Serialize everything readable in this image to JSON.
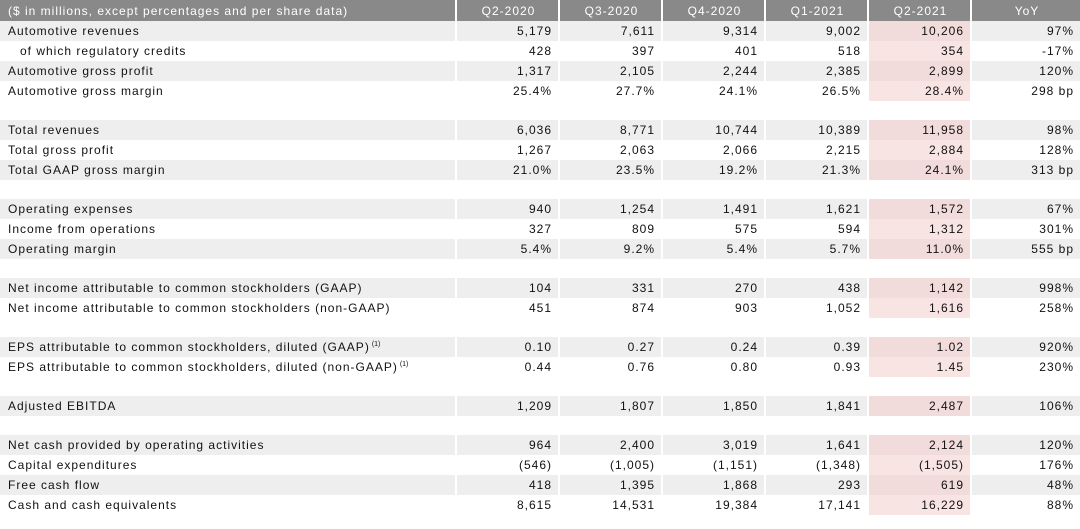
{
  "header": {
    "label": "($ in millions, except percentages and per share data)",
    "columns": [
      "Q2-2020",
      "Q3-2020",
      "Q4-2020",
      "Q1-2021",
      "Q2-2021",
      "YoY"
    ]
  },
  "sections": [
    {
      "rows": [
        {
          "label": "Automotive revenues",
          "indent": false,
          "values": [
            "5,179",
            "7,611",
            "9,314",
            "9,002",
            "10,206",
            "97%"
          ]
        },
        {
          "label": "of which regulatory credits",
          "indent": true,
          "values": [
            "428",
            "397",
            "401",
            "518",
            "354",
            "-17%"
          ]
        },
        {
          "label": "Automotive gross profit",
          "indent": false,
          "values": [
            "1,317",
            "2,105",
            "2,244",
            "2,385",
            "2,899",
            "120%"
          ]
        },
        {
          "label": "Automotive gross margin",
          "indent": false,
          "values": [
            "25.4%",
            "27.7%",
            "24.1%",
            "26.5%",
            "28.4%",
            "298 bp"
          ]
        }
      ]
    },
    {
      "rows": [
        {
          "label": "Total revenues",
          "indent": false,
          "values": [
            "6,036",
            "8,771",
            "10,744",
            "10,389",
            "11,958",
            "98%"
          ]
        },
        {
          "label": "Total gross profit",
          "indent": false,
          "values": [
            "1,267",
            "2,063",
            "2,066",
            "2,215",
            "2,884",
            "128%"
          ]
        },
        {
          "label": "Total GAAP gross margin",
          "indent": false,
          "values": [
            "21.0%",
            "23.5%",
            "19.2%",
            "21.3%",
            "24.1%",
            "313 bp"
          ]
        }
      ]
    },
    {
      "rows": [
        {
          "label": "Operating expenses",
          "indent": false,
          "values": [
            "940",
            "1,254",
            "1,491",
            "1,621",
            "1,572",
            "67%"
          ]
        },
        {
          "label": "Income from operations",
          "indent": false,
          "values": [
            "327",
            "809",
            "575",
            "594",
            "1,312",
            "301%"
          ]
        },
        {
          "label": "Operating margin",
          "indent": false,
          "values": [
            "5.4%",
            "9.2%",
            "5.4%",
            "5.7%",
            "11.0%",
            "555 bp"
          ]
        }
      ]
    },
    {
      "rows": [
        {
          "label": "Net income attributable to common stockholders (GAAP)",
          "indent": false,
          "values": [
            "104",
            "331",
            "270",
            "438",
            "1,142",
            "998%"
          ]
        },
        {
          "label": "Net income attributable to common stockholders (non-GAAP)",
          "indent": false,
          "values": [
            "451",
            "874",
            "903",
            "1,052",
            "1,616",
            "258%"
          ]
        }
      ]
    },
    {
      "rows": [
        {
          "label": "EPS attributable to common stockholders, diluted (GAAP)",
          "note": "(1)",
          "indent": false,
          "values": [
            "0.10",
            "0.27",
            "0.24",
            "0.39",
            "1.02",
            "920%"
          ]
        },
        {
          "label": "EPS attributable to common stockholders, diluted (non-GAAP)",
          "note": "(1)",
          "indent": false,
          "values": [
            "0.44",
            "0.76",
            "0.80",
            "0.93",
            "1.45",
            "230%"
          ]
        }
      ]
    },
    {
      "rows": [
        {
          "label": "Adjusted EBITDA",
          "indent": false,
          "values": [
            "1,209",
            "1,807",
            "1,850",
            "1,841",
            "2,487",
            "106%"
          ]
        }
      ]
    },
    {
      "rows": [
        {
          "label": "Net cash provided by operating activities",
          "indent": false,
          "values": [
            "964",
            "2,400",
            "3,019",
            "1,641",
            "2,124",
            "120%"
          ]
        },
        {
          "label": "Capital expenditures",
          "indent": false,
          "values": [
            "(546)",
            "(1,005)",
            "(1,151)",
            "(1,348)",
            "(1,505)",
            "176%"
          ]
        },
        {
          "label": "Free cash flow",
          "indent": false,
          "values": [
            "418",
            "1,395",
            "1,868",
            "293",
            "619",
            "48%"
          ]
        },
        {
          "label": "Cash and cash equivalents",
          "indent": false,
          "values": [
            "8,615",
            "14,531",
            "19,384",
            "17,141",
            "16,229",
            "88%"
          ]
        }
      ]
    }
  ],
  "colors": {
    "header_bg": "#898989",
    "row_shade": "#eeeeee",
    "highlight_column": "#f2dcdb"
  }
}
